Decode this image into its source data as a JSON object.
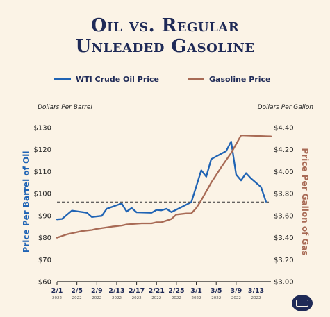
{
  "title": {
    "line1": "Oil vs. Regular",
    "line2": "Unleaded Gasoline"
  },
  "legend": {
    "oil_label": "WTI Crude Oil Price",
    "gas_label": "Gasoline Price"
  },
  "units": {
    "left": "Dollars Per Barrel",
    "right": "Dollars Per Gallon"
  },
  "seal_icon": "white-house-seal-icon",
  "chart_data": {
    "type": "line",
    "title": "Oil vs. Regular Unleaded Gasoline",
    "xlabel": "",
    "ylabel": "Price Per Barrel of Oil",
    "y2label": "Price Per Gallon of Gas",
    "colors": {
      "oil": "#1f63b4",
      "gas": "#a86a55",
      "text": "#1f2a57",
      "reference": "#333333"
    },
    "ylim": [
      60,
      130
    ],
    "y2lim": [
      3.0,
      4.4
    ],
    "y_ticks": [
      60,
      70,
      80,
      90,
      100,
      110,
      120,
      130
    ],
    "y_tick_labels": [
      "$60",
      "$70",
      "$80",
      "$90",
      "$100",
      "$110",
      "$120",
      "$130"
    ],
    "y2_ticks": [
      3.0,
      3.2,
      3.4,
      3.6,
      3.8,
      4.0,
      4.2,
      4.4
    ],
    "y2_tick_labels": [
      "$3.00",
      "$3.20",
      "$3.40",
      "$3.60",
      "$3.80",
      "$4.00",
      "$4.20",
      "$4.40"
    ],
    "x_ticks": [
      {
        "day": 1,
        "label": "2/1",
        "year": "2022"
      },
      {
        "day": 5,
        "label": "2/5",
        "year": "2022"
      },
      {
        "day": 9,
        "label": "2/9",
        "year": "2022"
      },
      {
        "day": 13,
        "label": "2/13",
        "year": "2022"
      },
      {
        "day": 17,
        "label": "2/17",
        "year": "2022"
      },
      {
        "day": 21,
        "label": "2/21",
        "year": "2022"
      },
      {
        "day": 25,
        "label": "2/25",
        "year": "2022"
      },
      {
        "day": 29,
        "label": "3/1",
        "year": "2022"
      },
      {
        "day": 33,
        "label": "3/5",
        "year": "2022"
      },
      {
        "day": 37,
        "label": "3/9",
        "year": "2022"
      },
      {
        "day": 41,
        "label": "3/13",
        "year": "2022"
      }
    ],
    "xlim": [
      1,
      44
    ],
    "reference_line": {
      "value": 96.2,
      "style": "dashed"
    },
    "series": [
      {
        "name": "WTI Crude Oil Price",
        "axis": "left",
        "x": [
          1,
          2,
          4,
          7,
          8,
          10,
          11,
          14,
          15,
          16,
          17,
          20,
          21,
          22,
          23,
          24,
          28,
          30,
          31,
          32,
          35,
          36,
          37,
          38,
          39,
          40,
          42,
          43
        ],
        "y": [
          88.3,
          88.5,
          92.3,
          91.3,
          89.4,
          89.9,
          93.1,
          95.5,
          91.8,
          93.5,
          91.5,
          91.3,
          92.6,
          92.4,
          93.1,
          91.6,
          96.1,
          110.6,
          107.7,
          115.7,
          119.3,
          123.7,
          108.7,
          106.0,
          109.3,
          106.9,
          103.0,
          96.4
        ]
      },
      {
        "name": "Gasoline Price",
        "axis": "right",
        "x": [
          1,
          3,
          6,
          8,
          9,
          12,
          14,
          15,
          18,
          20,
          21,
          22,
          24,
          25,
          27,
          28,
          29,
          30,
          32,
          34,
          36,
          37,
          38,
          44
        ],
        "y": [
          3.4,
          3.43,
          3.46,
          3.47,
          3.48,
          3.5,
          3.51,
          3.52,
          3.53,
          3.53,
          3.54,
          3.54,
          3.57,
          3.61,
          3.62,
          3.62,
          3.67,
          3.74,
          3.9,
          4.04,
          4.17,
          4.25,
          4.33,
          4.32
        ]
      }
    ]
  }
}
